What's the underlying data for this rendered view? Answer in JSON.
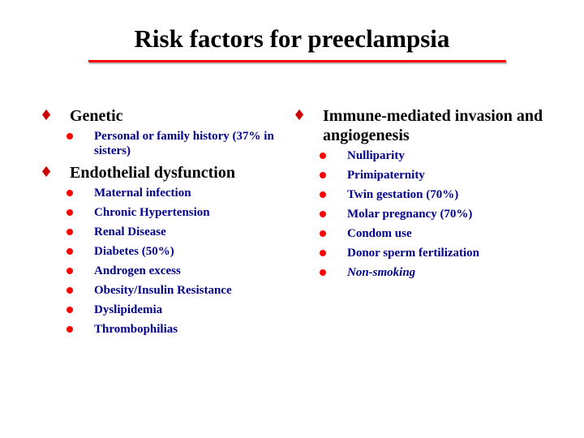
{
  "title": "Risk factors for preeclampsia",
  "colors": {
    "title_rule": "#ff0000",
    "diamond": "#cc0000",
    "bullet": "#ff0000",
    "item_text": "#00008b"
  },
  "left_column": {
    "sections": [
      {
        "heading": "Genetic",
        "items": [
          {
            "text": "Personal or family history (37% in sisters)"
          }
        ]
      },
      {
        "heading": "Endothelial dysfunction",
        "items": [
          {
            "text": "Maternal infection"
          },
          {
            "text": "Chronic Hypertension"
          },
          {
            "text": "Renal Disease"
          },
          {
            "text": "Diabetes (50%)"
          },
          {
            "text": "Androgen excess"
          },
          {
            "text": "Obesity/Insulin Resistance"
          },
          {
            "text": "Dyslipidemia"
          },
          {
            "text": "Thrombophilias"
          }
        ]
      }
    ]
  },
  "right_column": {
    "sections": [
      {
        "heading": "Immune-mediated invasion and angiogenesis",
        "items": [
          {
            "text": "Nulliparity"
          },
          {
            "text": "Primipaternity"
          },
          {
            "text": "Twin gestation (70%)"
          },
          {
            "text": "Molar pregnancy (70%)"
          },
          {
            "text": "Condom use"
          },
          {
            "text": "Donor sperm fertilization"
          },
          {
            "text": "Non-smoking"
          }
        ]
      }
    ]
  }
}
